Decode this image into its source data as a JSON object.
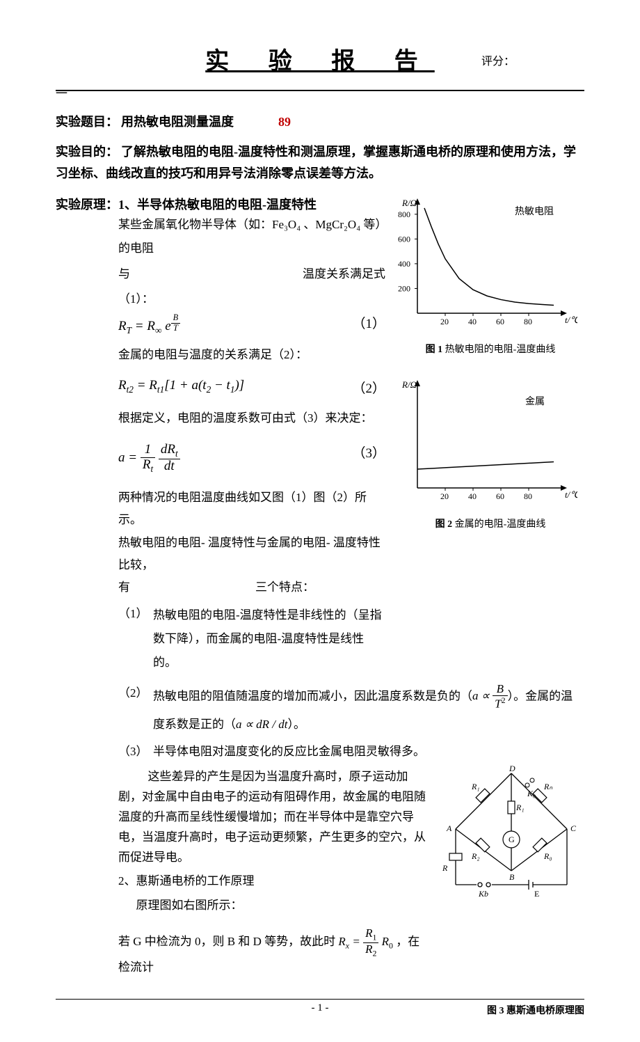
{
  "header": {
    "title": "实 验 报 告",
    "score_label": "评分："
  },
  "topic": {
    "label": "实验题目：",
    "value": "用热敏电阻测量温度",
    "number": "89"
  },
  "purpose": {
    "label": "实验目的：",
    "text": "了解热敏电阻的电阻-温度特性和测温原理，掌握惠斯通电桥的原理和使用方法，学习坐标、曲线改直的技巧和用异号法消除零点误差等方法。"
  },
  "principle": {
    "label": "实验原理：",
    "section1_title": "1、半导体热敏电阻的电阻-温度特性",
    "p1": "某些金属氧化物半导体（如：Fe₃O₄ 、MgCr₂O₄  等）的电阻",
    "p1b": "与",
    "p1c": "温度关系满足式",
    "p1d": "（1）：",
    "eq1_num": "（1）",
    "p2": "金属的电阻与温度的关系满足（2）：",
    "eq2_num": "（2）",
    "p3": "根据定义，电阻的温度系数可由式（3）来决定：",
    "eq3_num": "（3）",
    "p4": "两种情况的电阻温度曲线如又图（1）图（2）所示。",
    "p5": "热敏电阻的电阻- 温度特性与金属的电阻- 温度特性比较，",
    "p5b": "有",
    "p5c": "三个特点：",
    "item1_num": "（1）",
    "item1_text": "热敏电阻的电阻-温度特性是非线性的（呈指数下降），而金属的电阻-温度特性是线性的。",
    "item2_num": "（2）",
    "item2_text_a": "热敏电阻的阻值随温度的增加而减小，因此温度系数是负的（",
    "item2_text_b": "）。金属的温度系数是正的（",
    "item2_text_c": "）。",
    "item3_num": "（3）",
    "item3_text": "半导体电阻对温度变化的反应比金属电阻灵敏得多。",
    "explain": "这些差异的产生是因为当温度升高时，原子运动加剧，对金属中自由电子的运动有阻碍作用，故金属的电阻随温度的升高而呈线性缓慢增加；而在半导体中是靠空穴导电，当温度升高时，电子运动更频繁，产生更多的空穴，从而促进导电。",
    "section2_title": "2、惠斯通电桥的工作原理",
    "section2_sub": "原理图如右图所示：",
    "bridge_a": "若 G 中检流为 0，则 B 和 D 等势，故此时",
    "bridge_b": "，在检流计"
  },
  "fig1": {
    "caption_num": "图 1",
    "caption_text": "热敏电阻的电阻-温度曲线",
    "ylabel": "R/Ω",
    "xlabel": "t/℃",
    "legend": "热敏电阻",
    "xticks": [
      20,
      40,
      60,
      80
    ],
    "yticks": [
      200,
      400,
      600,
      800
    ],
    "xlim": [
      0,
      100
    ],
    "ylim": [
      0,
      900
    ],
    "curve": [
      [
        5,
        850
      ],
      [
        10,
        700
      ],
      [
        15,
        560
      ],
      [
        20,
        440
      ],
      [
        30,
        280
      ],
      [
        40,
        190
      ],
      [
        50,
        140
      ],
      [
        60,
        110
      ],
      [
        70,
        90
      ],
      [
        80,
        78
      ],
      [
        90,
        70
      ],
      [
        98,
        65
      ]
    ],
    "axis_color": "#000000",
    "curve_color": "#000000",
    "bg": "#ffffff"
  },
  "fig2": {
    "caption_num": "图 2",
    "caption_text": "金属的电阻-温度曲线",
    "ylabel": "R/Ω",
    "xlabel": "t/℃",
    "legend": "金属",
    "xticks": [
      20,
      40,
      60,
      80
    ],
    "xlim": [
      0,
      100
    ],
    "ylim": [
      0,
      100
    ],
    "line": [
      [
        0,
        18
      ],
      [
        98,
        25
      ]
    ],
    "axis_color": "#000000",
    "curve_color": "#000000",
    "bg": "#ffffff"
  },
  "fig3": {
    "caption": "图 3 惠斯通电桥原理图",
    "nodes": {
      "A": "A",
      "B": "B",
      "C": "C",
      "D": "D"
    },
    "labels": {
      "R1": "R₁",
      "R2": "R₂",
      "Rn": "Rₙ",
      "R0": "R₀",
      "K0": "K₀",
      "Kb": "Kb",
      "E": "E",
      "G": "G",
      "R": "R"
    }
  },
  "footer": {
    "page": "- 1 -"
  }
}
